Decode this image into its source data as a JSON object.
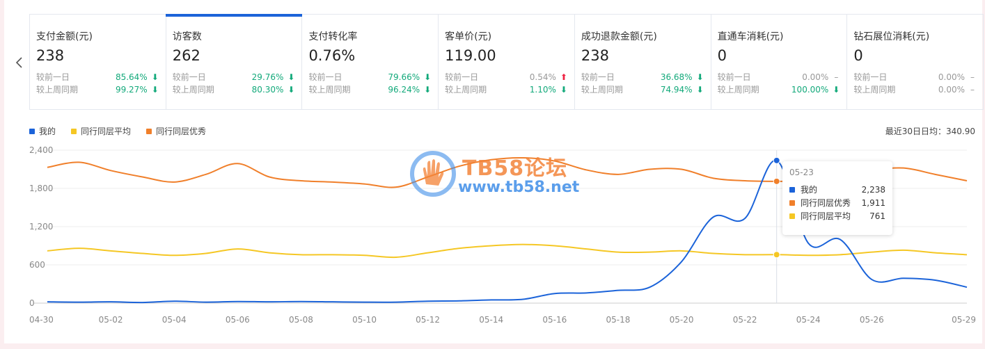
{
  "metrics": [
    {
      "title": "支付金额(元)",
      "value": "238",
      "rows": [
        {
          "label": "较前一日",
          "pct": "85.64%",
          "dir": "down"
        },
        {
          "label": "较上周同期",
          "pct": "99.27%",
          "dir": "down"
        }
      ]
    },
    {
      "title": "访客数",
      "value": "262",
      "rows": [
        {
          "label": "较前一日",
          "pct": "29.76%",
          "dir": "down"
        },
        {
          "label": "较上周同期",
          "pct": "80.30%",
          "dir": "down"
        }
      ]
    },
    {
      "title": "支付转化率",
      "value": "0.76%",
      "rows": [
        {
          "label": "较前一日",
          "pct": "79.66%",
          "dir": "down"
        },
        {
          "label": "较上周同期",
          "pct": "96.24%",
          "dir": "down"
        }
      ]
    },
    {
      "title": "客单价(元)",
      "value": "119.00",
      "rows": [
        {
          "label": "较前一日",
          "pct": "0.54%",
          "dir": "up"
        },
        {
          "label": "较上周同期",
          "pct": "1.10%",
          "dir": "down"
        }
      ]
    },
    {
      "title": "成功退款金额(元)",
      "value": "238",
      "rows": [
        {
          "label": "较前一日",
          "pct": "36.68%",
          "dir": "down"
        },
        {
          "label": "较上周同期",
          "pct": "74.94%",
          "dir": "down"
        }
      ]
    },
    {
      "title": "直通车消耗(元)",
      "value": "0",
      "rows": [
        {
          "label": "较前一日",
          "pct": "0.00%",
          "dir": "flat"
        },
        {
          "label": "较上周同期",
          "pct": "100.00%",
          "dir": "down"
        }
      ]
    },
    {
      "title": "钻石展位消耗(元)",
      "value": "0",
      "rows": [
        {
          "label": "较前一日",
          "pct": "0.00%",
          "dir": "flat"
        },
        {
          "label": "较上周同期",
          "pct": "0.00%",
          "dir": "flat"
        }
      ]
    }
  ],
  "active_metric": "访客数",
  "colors": {
    "mine": "#1b63d9",
    "avg": "#f5c724",
    "top": "#f07f2a",
    "down": "#12a97a",
    "up": "#ee2242"
  },
  "icons": {
    "prev": "chevron-left-icon",
    "down": "arrow-down-icon",
    "up": "arrow-up-icon",
    "flat": "dash-icon"
  },
  "legend": [
    "我的",
    "同行同层平均",
    "同行同层优秀"
  ],
  "avg_label": "最近30日日均：340.90",
  "watermark": {
    "title": "TB58论坛",
    "url": "www.tb58.net"
  },
  "tooltip": {
    "date": "05-23",
    "rows": [
      {
        "name": "我的",
        "value": "2,238"
      },
      {
        "name": "同行同层优秀",
        "value": "1,911"
      },
      {
        "name": "同行同层平均",
        "value": "761"
      }
    ]
  },
  "chart_data": {
    "type": "line",
    "x": [
      "04-30",
      "05-01",
      "05-02",
      "05-03",
      "05-04",
      "05-05",
      "05-06",
      "05-07",
      "05-08",
      "05-09",
      "05-10",
      "05-11",
      "05-12",
      "05-13",
      "05-14",
      "05-15",
      "05-16",
      "05-17",
      "05-18",
      "05-19",
      "05-20",
      "05-21",
      "05-22",
      "05-23",
      "05-24",
      "05-25",
      "05-26",
      "05-27",
      "05-28",
      "05-29"
    ],
    "xticks": [
      "04-30",
      "05-02",
      "05-04",
      "05-06",
      "05-08",
      "05-10",
      "05-12",
      "05-14",
      "05-16",
      "05-18",
      "05-20",
      "05-22",
      "05-24",
      "05-26",
      "05-29"
    ],
    "yticks": [
      "0",
      "600",
      "1,200",
      "1,800",
      "2,400"
    ],
    "ylim": [
      0,
      2400
    ],
    "grid": true,
    "legend_position": "top-left",
    "series": [
      {
        "name": "我的",
        "values": [
          20,
          15,
          20,
          10,
          30,
          15,
          25,
          20,
          25,
          20,
          15,
          15,
          30,
          35,
          50,
          60,
          150,
          160,
          200,
          250,
          650,
          1350,
          1330,
          2238,
          940,
          1000,
          370,
          390,
          360,
          250
        ]
      },
      {
        "name": "同行同层平均",
        "values": [
          820,
          860,
          820,
          780,
          750,
          780,
          850,
          790,
          760,
          760,
          750,
          720,
          790,
          860,
          900,
          920,
          900,
          850,
          800,
          800,
          820,
          780,
          760,
          761,
          750,
          760,
          800,
          830,
          790,
          760
        ]
      },
      {
        "name": "同行同层优秀",
        "values": [
          2130,
          2210,
          2080,
          1980,
          1900,
          2020,
          2190,
          1980,
          1920,
          1900,
          1870,
          1820,
          1980,
          2150,
          2250,
          2280,
          2230,
          2090,
          2020,
          2100,
          2100,
          1960,
          1920,
          1911,
          1920,
          1980,
          2080,
          2120,
          2020,
          1920
        ]
      }
    ]
  }
}
